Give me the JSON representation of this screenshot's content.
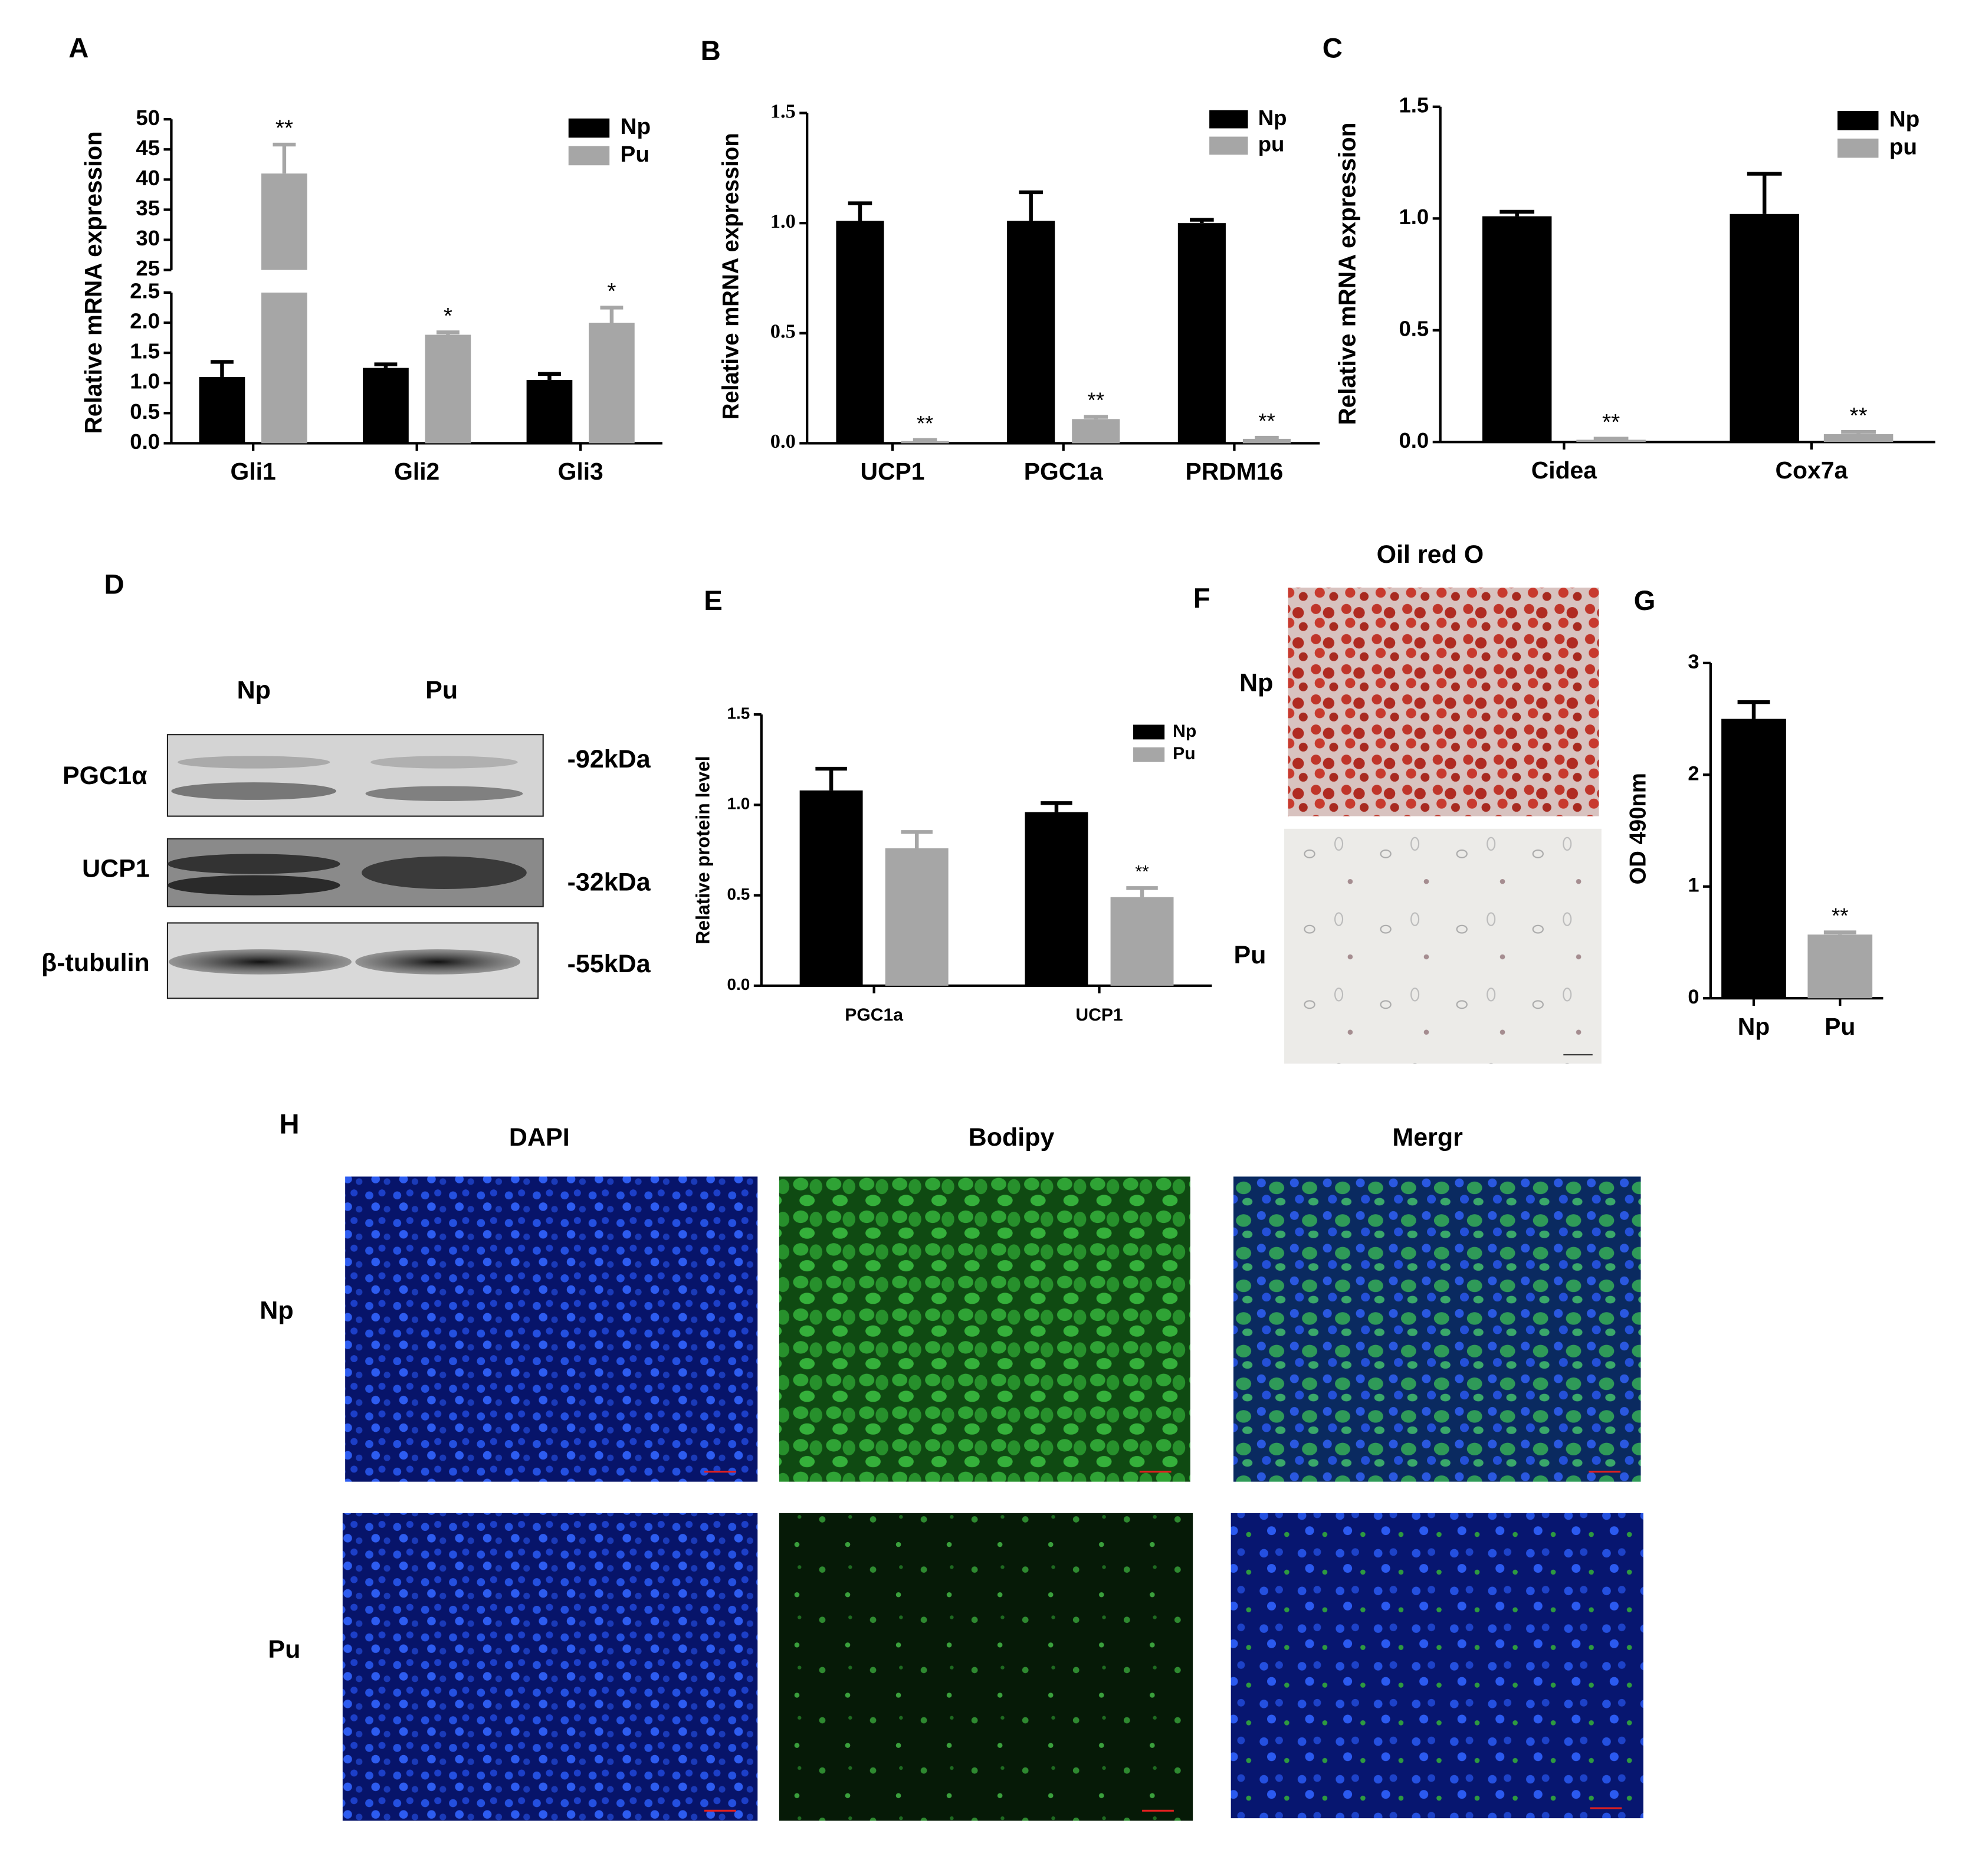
{
  "chart_data": [
    {
      "type": "bar",
      "panel": "A",
      "ylabel": "Relative mRNA expression",
      "categories": [
        "Gli1",
        "Gli2",
        "Gli3"
      ],
      "series": [
        {
          "name": "Np",
          "color": "#000000",
          "values": [
            1.1,
            1.25,
            1.05
          ],
          "errors": [
            0.25,
            0.06,
            0.1
          ]
        },
        {
          "name": "Pu",
          "color": "#a6a6a6",
          "values": [
            41,
            1.8,
            2.0
          ],
          "errors": [
            4.8,
            0.04,
            0.25
          ],
          "annotations": [
            "**",
            "*",
            "*"
          ]
        }
      ],
      "ylim": [
        0,
        50
      ],
      "ybreak": [
        2.5,
        25
      ],
      "yticks": [
        {
          "value": 0,
          "label": "0.0"
        },
        0.5,
        {
          "value": 1,
          "label": "1.0"
        },
        1.5,
        {
          "value": 2,
          "label": "2.0"
        },
        2.5,
        25,
        30,
        35,
        40,
        45,
        50
      ],
      "legend": "upper right"
    },
    {
      "type": "bar",
      "panel": "B",
      "ylabel": "Relative mRNA expression",
      "categories": [
        "UCP1",
        "PGC1a",
        "PRDM16"
      ],
      "series": [
        {
          "name": "Np",
          "color": "#000000",
          "values": [
            1.01,
            1.01,
            1.0
          ],
          "errors": [
            0.08,
            0.13,
            0.015
          ]
        },
        {
          "name": "pu",
          "color": "#a6a6a6",
          "values": [
            0.01,
            0.11,
            0.02
          ],
          "errors": [
            0.005,
            0.01,
            0.005
          ],
          "annotations": [
            "**",
            "**",
            "**"
          ]
        }
      ],
      "ylim": [
        0,
        1.5
      ],
      "yticks": [
        {
          "value": 0,
          "label": "0.0"
        },
        0.5,
        {
          "value": 1,
          "label": "1.0"
        },
        1.5
      ],
      "legend": "upper right"
    },
    {
      "type": "bar",
      "panel": "C",
      "ylabel": "Relative mRNA expression",
      "categories": [
        "Cidea",
        "Cox7a"
      ],
      "series": [
        {
          "name": "Np",
          "color": "#000000",
          "values": [
            1.01,
            1.02
          ],
          "errors": [
            0.02,
            0.18
          ]
        },
        {
          "name": "pu",
          "color": "#a6a6a6",
          "values": [
            0.01,
            0.035
          ],
          "errors": [
            0.005,
            0.01
          ],
          "annotations": [
            "**",
            "**"
          ]
        }
      ],
      "ylim": [
        0,
        1.5
      ],
      "yticks": [
        {
          "value": 0,
          "label": "0.0"
        },
        0.5,
        {
          "value": 1,
          "label": "1.0"
        },
        1.5
      ],
      "legend": "upper right"
    },
    {
      "type": "bar",
      "panel": "E",
      "ylabel": "Relative protein level",
      "categories": [
        "PGC1a",
        "UCP1"
      ],
      "series": [
        {
          "name": "Np",
          "color": "#000000",
          "values": [
            1.08,
            0.96
          ],
          "errors": [
            0.12,
            0.05
          ]
        },
        {
          "name": "Pu",
          "color": "#a6a6a6",
          "values": [
            0.76,
            0.49
          ],
          "errors": [
            0.09,
            0.05
          ],
          "annotations": [
            null,
            "**"
          ]
        }
      ],
      "ylim": [
        0,
        1.5
      ],
      "yticks": [
        {
          "value": 0,
          "label": "0.0"
        },
        0.5,
        {
          "value": 1,
          "label": "1.0"
        },
        1.5
      ],
      "legend": "upper right"
    },
    {
      "type": "bar",
      "panel": "G",
      "ylabel": "OD 490nm",
      "categories": [
        "Np",
        "Pu"
      ],
      "values": [
        2.5,
        0.57
      ],
      "errors": [
        0.15,
        0.02
      ],
      "colors": [
        "#000000",
        "#a6a6a6"
      ],
      "annotations": [
        null,
        "**"
      ],
      "ylim": [
        0,
        3
      ],
      "yticks": [
        0,
        1,
        2,
        3
      ]
    }
  ],
  "blot": {
    "panel": "D",
    "lanes": [
      "Np",
      "Pu"
    ],
    "rows": [
      {
        "label": "PGC1α",
        "size": "-92kDa"
      },
      {
        "label": "UCP1",
        "size": "-32kDa"
      },
      {
        "label": "β-tubulin",
        "size": "-55kDa"
      }
    ]
  },
  "oil_red_o": {
    "panel": "F",
    "title": "Oil red O",
    "rows": [
      "Np",
      "Pu"
    ]
  },
  "fluorescence": {
    "panel": "H",
    "columns": [
      "DAPI",
      "Bodipy",
      "Mergr"
    ],
    "rows": [
      "Np",
      "Pu"
    ]
  }
}
